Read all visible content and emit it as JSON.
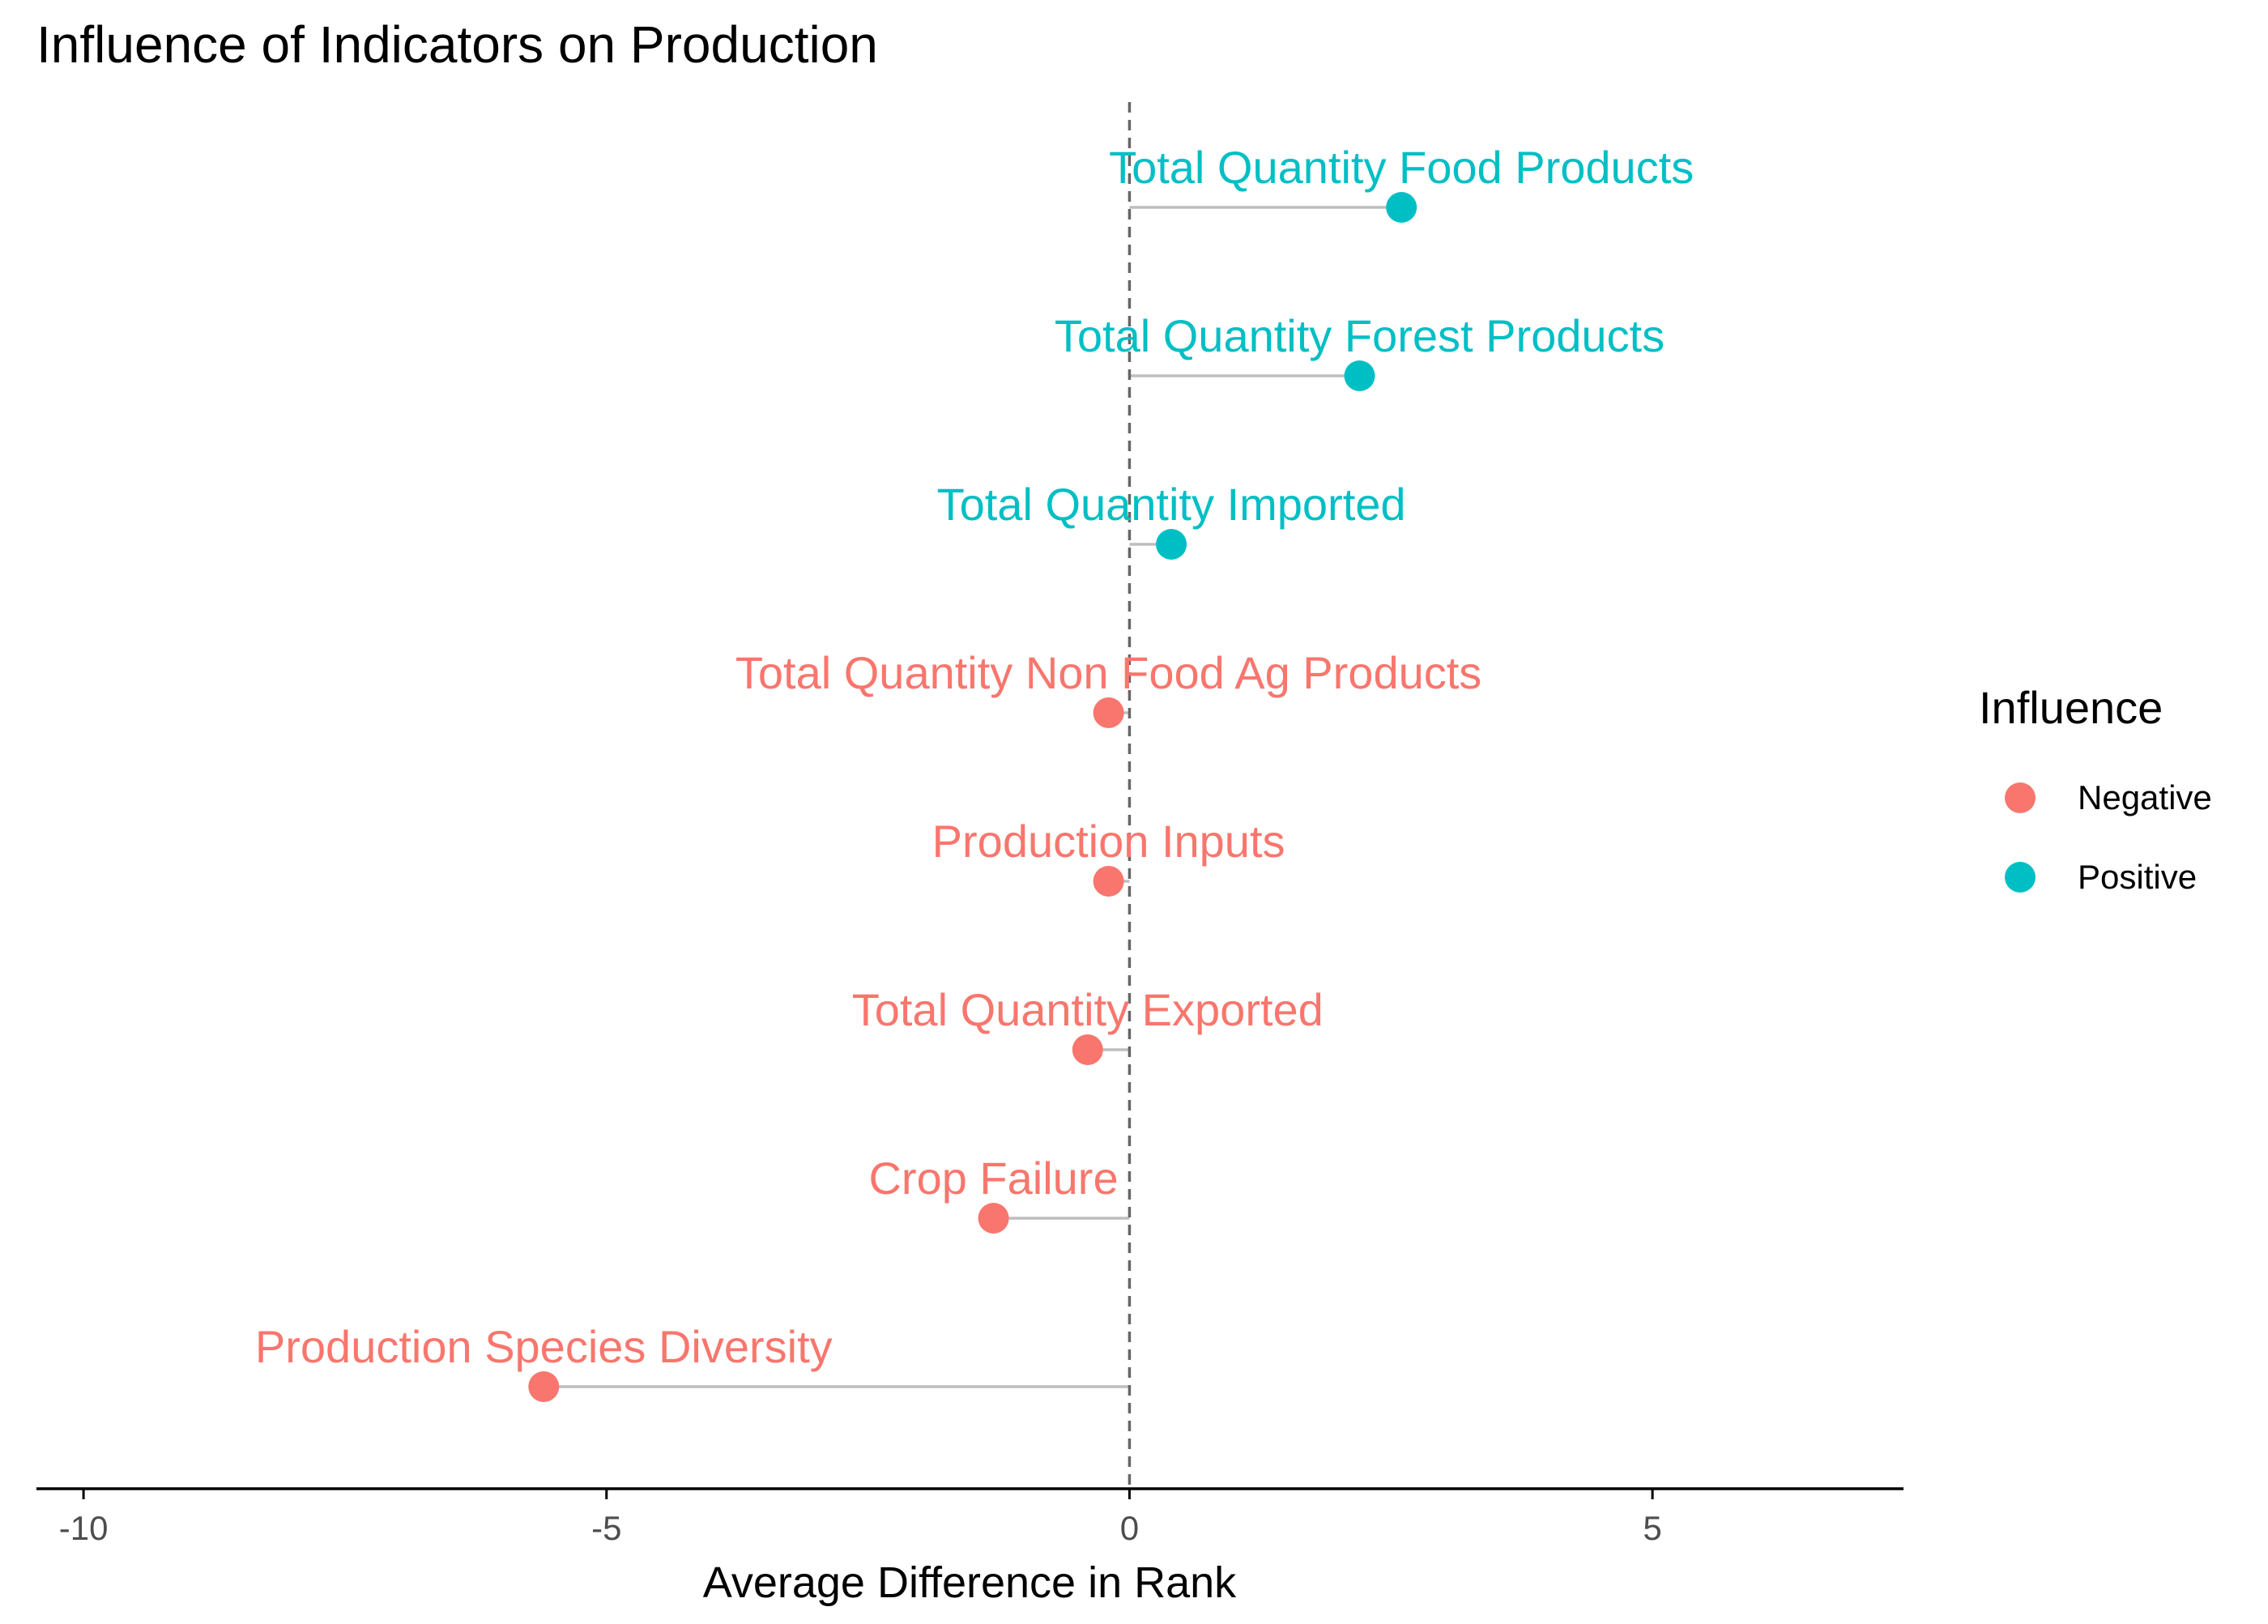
{
  "chart_data": {
    "type": "lollipop",
    "title": "Influence of Indicators on Production",
    "xlabel": "Average Difference in Rank",
    "ylabel": "",
    "xlim": [
      -10.45,
      7.4
    ],
    "xticks": [
      -10,
      -5,
      0,
      5
    ],
    "reference_line_x": 0,
    "legend": {
      "title": "Influence",
      "placement": "right",
      "entries": [
        {
          "name": "Negative",
          "color": "#F8766D"
        },
        {
          "name": "Positive",
          "color": "#00BFC4"
        }
      ]
    },
    "colors": {
      "Negative": "#F8766D",
      "Positive": "#00BFC4",
      "stem": "#BEBEBE",
      "refline": "#666666",
      "axis": "#000000",
      "ticklabel": "#4D4D4D"
    },
    "points": [
      {
        "label": "Total Quantity Food Products",
        "value": 2.6,
        "influence": "Positive"
      },
      {
        "label": "Total Quantity Forest Products",
        "value": 2.2,
        "influence": "Positive"
      },
      {
        "label": "Total Quantity Imported",
        "value": 0.4,
        "influence": "Positive"
      },
      {
        "label": "Total Quantity Non Food Ag Products",
        "value": -0.2,
        "influence": "Negative"
      },
      {
        "label": "Production Inputs",
        "value": -0.2,
        "influence": "Negative"
      },
      {
        "label": "Total Quantity Exported",
        "value": -0.4,
        "influence": "Negative"
      },
      {
        "label": "Crop Failure",
        "value": -1.3,
        "influence": "Negative"
      },
      {
        "label": "Production Species Diversity",
        "value": -5.6,
        "influence": "Negative"
      }
    ]
  }
}
